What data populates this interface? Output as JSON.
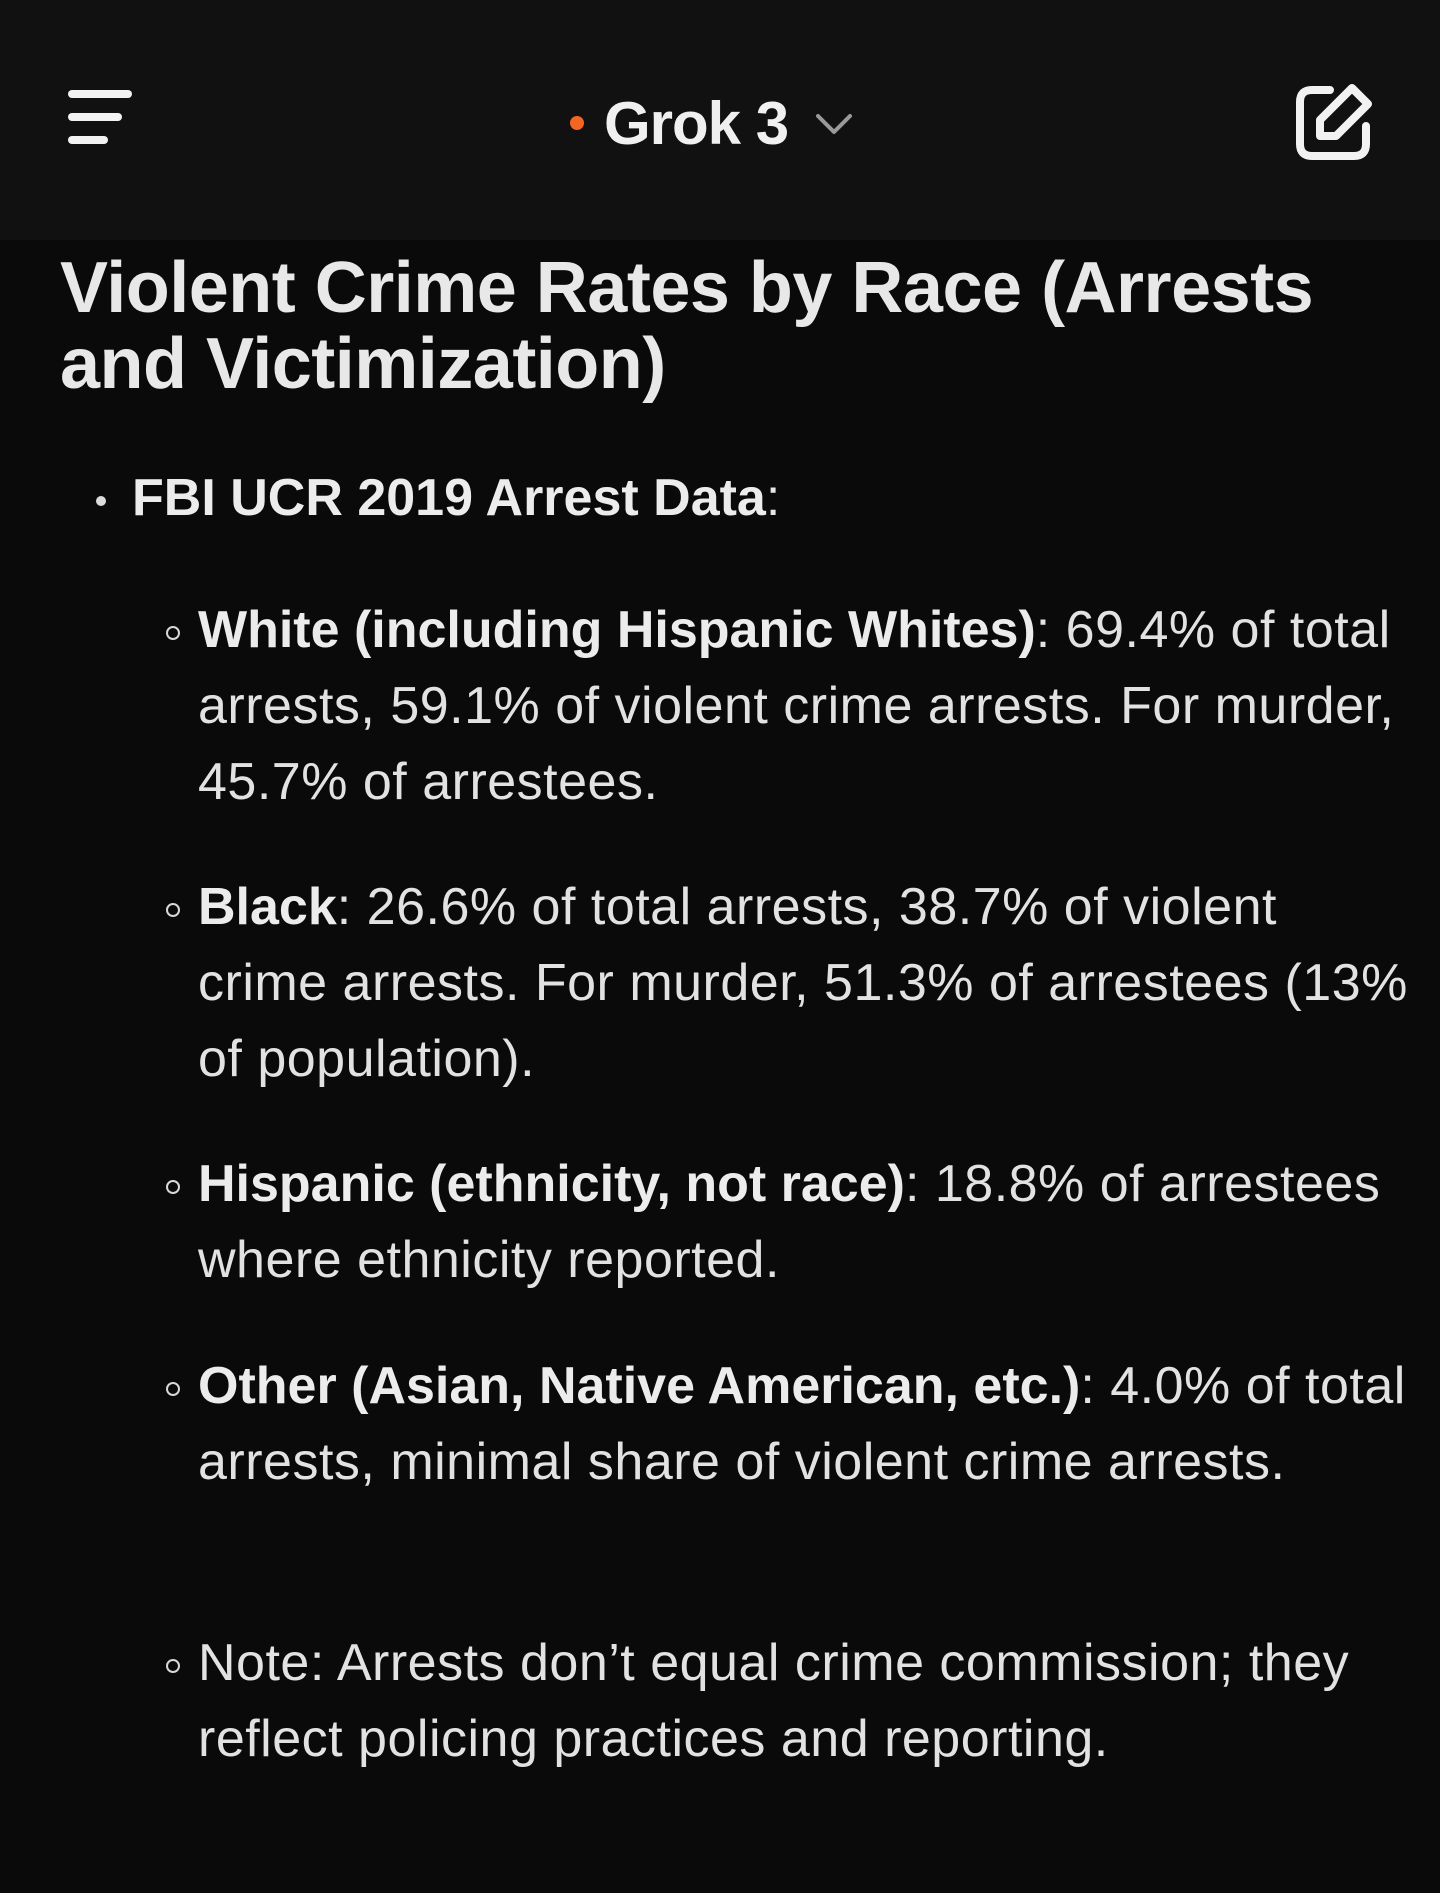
{
  "header": {
    "model_name": "Grok 3",
    "accent_color": "#f26522",
    "menu_icon": "menu-icon",
    "chevron_icon": "chevron-down-icon",
    "new_chat_icon": "edit-icon"
  },
  "content": {
    "title": "Violent Crime Rates by Race (Arrests and Victimization)",
    "section": {
      "label": "FBI UCR 2019 Arrest Data",
      "suffix": ":"
    },
    "items": [
      {
        "label": "White (including Hispanic Whites)",
        "text": ": 69.4% of total arrests, 59.1% of violent crime arrests. For murder, 45.7% of arrestees."
      },
      {
        "label": "Black",
        "text": ": 26.6% of total arrests, 38.7% of violent crime arrests. For murder, 51.3% of arrestees (13% of population)."
      },
      {
        "label": "Hispanic (ethnicity, not race)",
        "text": ": 18.8% of arrestees where ethnicity reported."
      },
      {
        "label": "Other (Asian, Native American, etc.)",
        "text": ": 4.0% of total arrests, minimal share of violent crime arrests."
      },
      {
        "label": "",
        "text": "Note: Arrests don’t equal crime commission; they reflect policing practices and reporting."
      }
    ]
  }
}
